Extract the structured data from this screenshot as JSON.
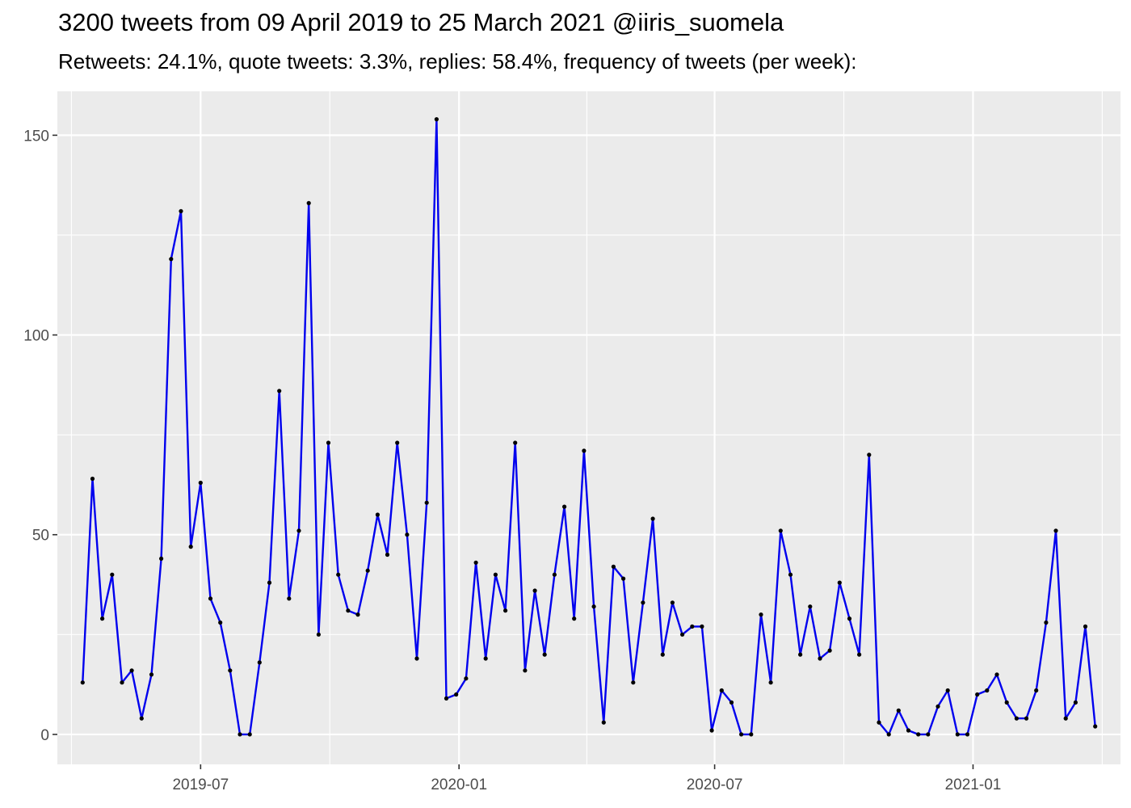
{
  "title": "3200 tweets from 09 April 2019 to 25 March 2021 @iiris_suomela",
  "subtitle": "Retweets: 24.1%, quote tweets: 3.3%, replies: 58.4%, frequency of tweets (per week):",
  "chart_data": {
    "type": "line",
    "title": "3200 tweets from 09 April 2019 to 25 March 2021 @iiris_suomela",
    "subtitle": "Retweets: 24.1%, quote tweets: 3.3%, replies: 58.4%, frequency of tweets (per week):",
    "xlabel": "",
    "ylabel": "",
    "x_type": "date",
    "x_start": "2019-04-08",
    "x_step_days": 7,
    "xlim": [
      "2019-03-21",
      "2021-04-16"
    ],
    "ylim": [
      -7.5,
      161
    ],
    "x_ticks": [
      {
        "date": "2019-07-01",
        "label": "2019-07"
      },
      {
        "date": "2020-01-01",
        "label": "2020-01"
      },
      {
        "date": "2020-07-01",
        "label": "2020-07"
      },
      {
        "date": "2021-01-01",
        "label": "2021-01"
      }
    ],
    "y_ticks": [
      0,
      50,
      100,
      150
    ],
    "grid": true,
    "line_color": "#0000ee",
    "point_color": "#000000",
    "panel_color": "#ebebeb",
    "series": [
      {
        "values": [
          13,
          64,
          29,
          40,
          13,
          16,
          4,
          15,
          44,
          119,
          131,
          47,
          63,
          34,
          28,
          16,
          0,
          0,
          18,
          38,
          86,
          34,
          51,
          133,
          25,
          73,
          40,
          31,
          30,
          41,
          55,
          45,
          73,
          50,
          19,
          58,
          154,
          9,
          10,
          14,
          43,
          19,
          40,
          31,
          73,
          16,
          36,
          20,
          40,
          57,
          29,
          71,
          32,
          3,
          42,
          39,
          13,
          33,
          54,
          20,
          33,
          25,
          27,
          27,
          1,
          11,
          8,
          0,
          0,
          30,
          13,
          51,
          40,
          20,
          32,
          19,
          21,
          38,
          29,
          20,
          70,
          3,
          0,
          6,
          1,
          0,
          0,
          7,
          11,
          0,
          0,
          10,
          11,
          15,
          8,
          4,
          4,
          11,
          28,
          51,
          4,
          8,
          27,
          2
        ]
      }
    ]
  }
}
